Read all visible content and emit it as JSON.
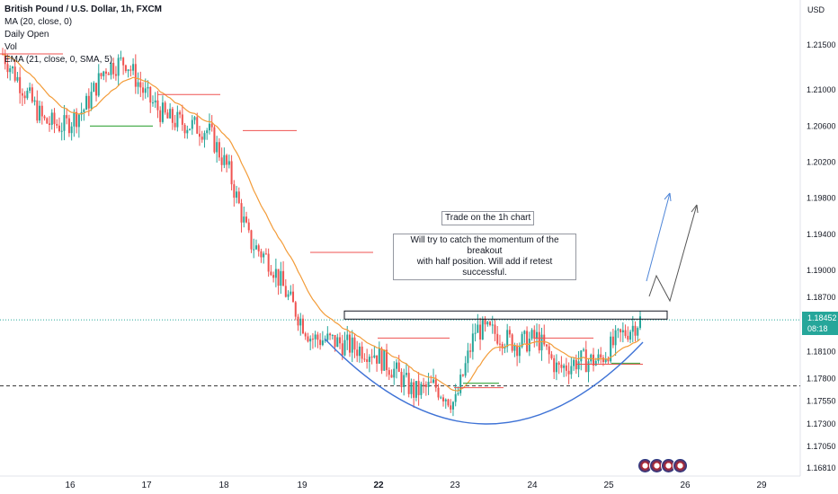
{
  "legend": {
    "symbol": "British Pound / U.S. Dollar, 1h, FXCM",
    "ma": "MA (20, close, 0)",
    "daily_open": "Daily Open",
    "vol": "Vol",
    "ema": "EMA (21, close, 0, SMA, 5)"
  },
  "notes": {
    "trade": "Trade on the 1h chart",
    "catch_line1": "Will try to catch the momentum of the breakout",
    "catch_line2": "with half position. Will add if retest successful."
  },
  "price_axis": {
    "currency": "USD",
    "last_price": "1.18452",
    "countdown": "08:18"
  },
  "colors": {
    "up": "#26a69a",
    "down": "#ef5350",
    "ema": "#f39c39",
    "ma": "#4caf50",
    "daily_open": "#ef5350",
    "cup_arc": "#3f73d6",
    "projection_blue": "#4f86d8",
    "projection_gray": "#555555"
  },
  "chart_data": {
    "type": "candlestick",
    "title": "British Pound / U.S. Dollar, 1h, FXCM",
    "x_ticks": [
      "16",
      "17",
      "18",
      "19",
      "22",
      "23",
      "24",
      "25",
      "26",
      "29"
    ],
    "y_ticks": [
      "1.21500",
      "1.21000",
      "1.20600",
      "1.20200",
      "1.19800",
      "1.19400",
      "1.19000",
      "1.18700",
      "1.18100",
      "1.17800",
      "1.17550",
      "1.17300",
      "1.17050",
      "1.16810"
    ],
    "ylim": [
      1.1669,
      1.2195
    ],
    "last_price": 1.18452,
    "horizontal_level": 1.1772,
    "resistance_zone": [
      1.1846,
      1.1855
    ],
    "close_path": [
      [
        "16",
        1.214
      ],
      [
        "16",
        1.2102
      ],
      [
        "16",
        1.2065
      ],
      [
        "16",
        1.206
      ],
      [
        "17",
        1.208
      ],
      [
        "17",
        1.2125
      ],
      [
        "17",
        1.2132
      ],
      [
        "17",
        1.2092
      ],
      [
        "18",
        1.2068
      ],
      [
        "18",
        1.2062
      ],
      [
        "18",
        1.2055
      ],
      [
        "18",
        1.201
      ],
      [
        "19",
        1.1932
      ],
      [
        "19",
        1.191
      ],
      [
        "19",
        1.1865
      ],
      [
        "19",
        1.1825
      ],
      [
        "22",
        1.1822
      ],
      [
        "22",
        1.1815
      ],
      [
        "22",
        1.181
      ],
      [
        "22",
        1.179
      ],
      [
        "23",
        1.1765
      ],
      [
        "23",
        1.1772
      ],
      [
        "23",
        1.1752
      ],
      [
        "23",
        1.1835
      ],
      [
        "24",
        1.183
      ],
      [
        "24",
        1.1818
      ],
      [
        "24",
        1.1825
      ],
      [
        "24",
        1.179
      ],
      [
        "25",
        1.18
      ],
      [
        "25",
        1.18
      ],
      [
        "25",
        1.1826
      ],
      [
        "25",
        1.1845
      ]
    ],
    "grid": false
  }
}
